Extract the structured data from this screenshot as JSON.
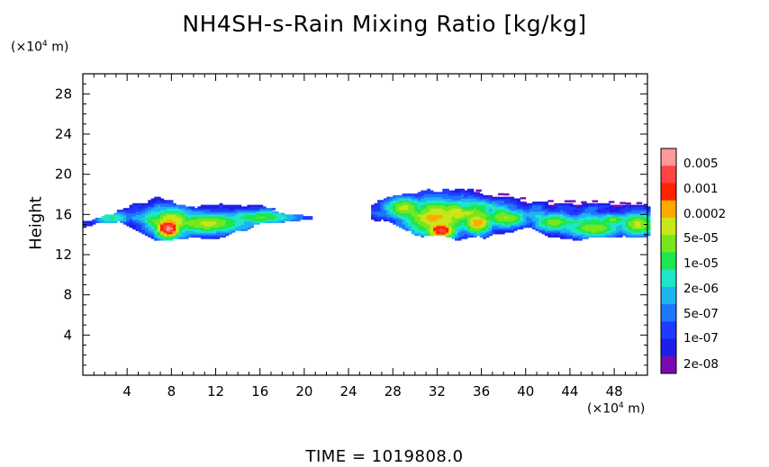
{
  "chart_data": {
    "type": "heatmap",
    "title": "NH4SH-s-Rain Mixing Ratio [kg/kg]",
    "ylabel": "Height",
    "xlabel": "",
    "x_unit": "(×10",
    "x_unit_exp": "4",
    "x_unit_tail": " m)",
    "y_unit": "(×10",
    "y_unit_exp": "4",
    "y_unit_tail": " m)",
    "xlim": [
      0,
      51
    ],
    "ylim": [
      0,
      30
    ],
    "x_ticks": [
      4,
      8,
      12,
      16,
      20,
      24,
      28,
      32,
      36,
      40,
      44,
      48
    ],
    "x_tick_labels": [
      "4",
      "8",
      "12",
      "16",
      "20",
      "24",
      "28",
      "32",
      "36",
      "40",
      "44",
      "48"
    ],
    "y_ticks": [
      4,
      8,
      12,
      16,
      20,
      24,
      28
    ],
    "y_tick_labels": [
      "4",
      "8",
      "12",
      "16",
      "20",
      "24",
      "28"
    ],
    "colorbar": {
      "labels": [
        "0.005",
        "0.001",
        "0.0002",
        "5e-05",
        "1e-05",
        "2e-06",
        "5e-07",
        "1e-07",
        "2e-08"
      ],
      "colors": [
        "#ff9999",
        "#ff4444",
        "#ff2200",
        "#ffaa00",
        "#c8e619",
        "#78e61e",
        "#1ee650",
        "#1ee6c8",
        "#1eb4f0",
        "#1e78ff",
        "#1e3cff",
        "#1e1ee6",
        "#780ab4"
      ]
    },
    "regions": [
      {
        "name": "left cloud band",
        "x_range": [
          0,
          20.5
        ],
        "height_range": [
          13.2,
          17.9
        ],
        "peak_x": 7.8,
        "peak_height": 14.4,
        "peak_level": "0.0002"
      },
      {
        "name": "right cloud band",
        "x_range": [
          26,
          51
        ],
        "height_range": [
          13.6,
          18.7
        ],
        "peak_x": 32,
        "peak_height": 14.6,
        "peak_level": "0.0002"
      }
    ],
    "time_label": "TIME = 1019808.0"
  }
}
